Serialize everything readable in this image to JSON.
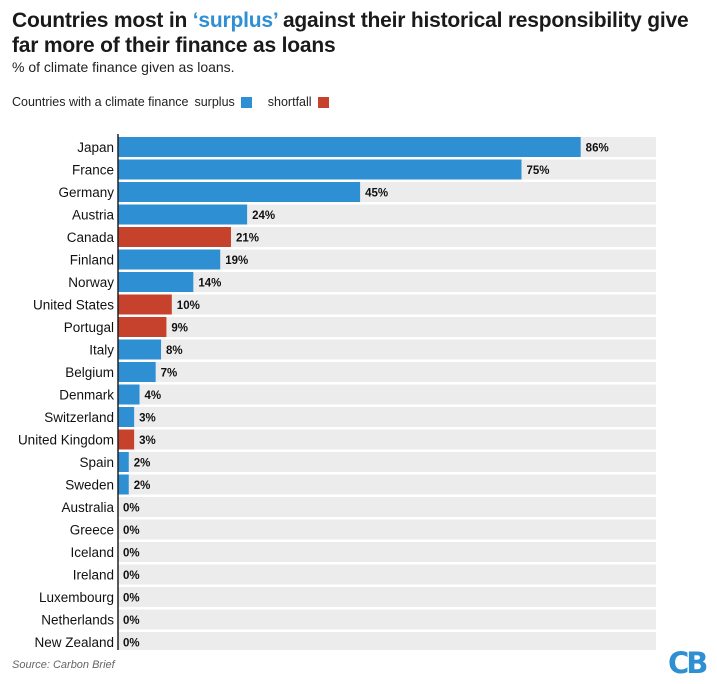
{
  "title_pre": "Countries most in ",
  "title_hl": "‘surplus’",
  "title_post": " against their historical responsibility give far more of their finance as loans",
  "subtitle": "% of climate finance given as loans.",
  "legend": {
    "label": "Countries with a climate finance",
    "surplus": "surplus",
    "shortfall": "shortfall"
  },
  "source": "Source: Carbon Brief",
  "logo": "CB",
  "colors": {
    "surplus": "#2e8fd3",
    "shortfall": "#c6422c",
    "track": "#ececec"
  },
  "chart_data": {
    "type": "bar",
    "orientation": "horizontal",
    "xlim": [
      0,
      100
    ],
    "categories": [
      "Japan",
      "France",
      "Germany",
      "Austria",
      "Canada",
      "Finland",
      "Norway",
      "United States",
      "Portugal",
      "Italy",
      "Belgium",
      "Denmark",
      "Switzerland",
      "United Kingdom",
      "Spain",
      "Sweden",
      "Australia",
      "Greece",
      "Iceland",
      "Ireland",
      "Luxembourg",
      "Netherlands",
      "New Zealand"
    ],
    "values": [
      86,
      75,
      45,
      24,
      21,
      19,
      14,
      10,
      9,
      8,
      7,
      4,
      3,
      3,
      2,
      2,
      0,
      0,
      0,
      0,
      0,
      0,
      0
    ],
    "labels": [
      "86%",
      "75%",
      "45%",
      "24%",
      "21%",
      "19%",
      "14%",
      "10%",
      "9%",
      "8%",
      "7%",
      "4%",
      "3%",
      "3%",
      "2%",
      "2%",
      "0%",
      "0%",
      "0%",
      "0%",
      "0%",
      "0%",
      "0%"
    ],
    "groups": [
      "surplus",
      "surplus",
      "surplus",
      "surplus",
      "shortfall",
      "surplus",
      "surplus",
      "shortfall",
      "shortfall",
      "surplus",
      "surplus",
      "surplus",
      "surplus",
      "shortfall",
      "surplus",
      "surplus",
      "surplus",
      "surplus",
      "surplus",
      "surplus",
      "surplus",
      "surplus",
      "surplus"
    ]
  }
}
